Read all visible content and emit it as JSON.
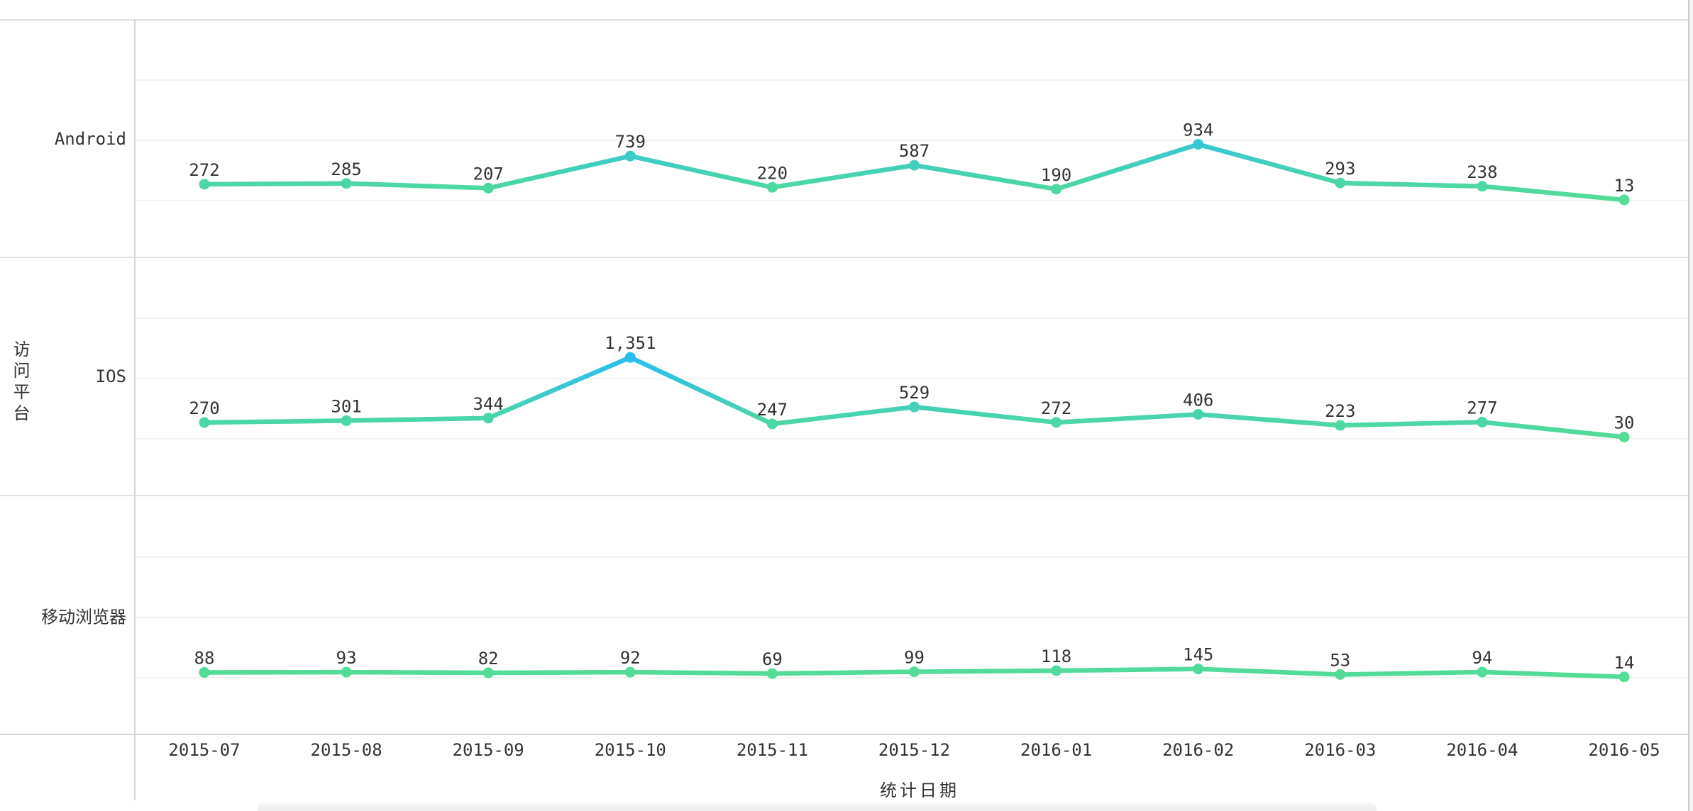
{
  "chart_data": {
    "type": "line",
    "title": "",
    "xlabel": "统计日期",
    "ylabel": "访问平台",
    "categories": [
      "2015-07",
      "2015-08",
      "2015-09",
      "2015-10",
      "2015-11",
      "2015-12",
      "2016-01",
      "2016-02",
      "2016-03",
      "2016-04",
      "2016-05"
    ],
    "series": [
      {
        "name": "Android",
        "values": [
          272,
          285,
          207,
          739,
          220,
          587,
          190,
          934,
          293,
          238,
          13
        ]
      },
      {
        "name": "IOS",
        "values": [
          270,
          301,
          344,
          1351,
          247,
          529,
          272,
          406,
          223,
          277,
          30
        ]
      },
      {
        "name": "移动浏览器",
        "values": [
          88,
          93,
          82,
          92,
          69,
          99,
          118,
          145,
          53,
          94,
          14
        ]
      }
    ],
    "layout_hints": {
      "rows": 3,
      "row_ylim": [
        0,
        3000
      ],
      "gridline_step": 1000,
      "grid": true,
      "legend": "none",
      "value_labels": "above-points",
      "thousands_separator": ","
    },
    "visual_map": {
      "min": 0,
      "max": 1351,
      "color_low": "#55DD93",
      "color_high": "#29BDF0"
    },
    "colors": {
      "label_text": "#333333",
      "gridline": "#f2f2f2",
      "band_separator": "#e2e2e2",
      "axis_line": "#d4d4d4"
    }
  }
}
